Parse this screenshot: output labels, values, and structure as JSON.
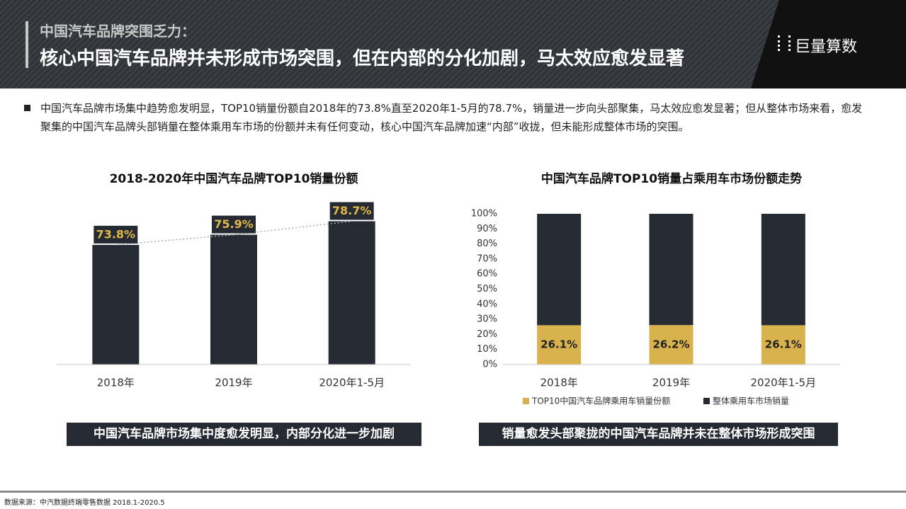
{
  "header": {
    "subtitle": "中国汽车品牌突围乏力：",
    "title": "核心中国汽车品牌并未形成市场突围，但在内部的分化加剧，马太效应愈发显著",
    "logo": "巨量算数"
  },
  "bullet": "中国汽车品牌市场集中趋势愈发明显，TOP10销量份额自2018年的73.8%直至2020年1-5月的78.7%，销量进一步向头部聚集，马太效应愈发显著；但从整体市场来看，愈发聚集的中国汽车品牌头部销量在整体乘用车市场的份额并未有任何变动，核心中国汽车品牌加速“内部”收拢，但未能形成整体市场的突围。",
  "captions": [
    "中国汽车品牌市场集中度愈发明显，内部分化进一步加剧",
    "销量愈发头部聚拢的中国汽车品牌并未在整体市场形成突围"
  ],
  "source": "数据来源：中汽数据终端零售数据 2018.1-2020.5",
  "chart_data": [
    {
      "type": "bar",
      "title": "2018-2020年中国汽车品牌TOP10销量份额",
      "categories": [
        "2018年",
        "2019年",
        "2020年1-5月"
      ],
      "values": [
        73.8,
        75.9,
        78.7
      ],
      "value_labels": [
        "73.8%",
        "75.9%",
        "78.7%"
      ],
      "color": "#252a33",
      "label_color": "#e0b84c",
      "ylim": [
        49,
        82
      ],
      "trend_line": true
    },
    {
      "type": "stacked_bar",
      "title": "中国汽车品牌TOP10销量占乘用车市场份额走势",
      "categories": [
        "2018年",
        "2019年",
        "2020年1-5月"
      ],
      "series": [
        {
          "name": "TOP10中国汽车品牌乘用车销量份额",
          "color": "#d8b24d",
          "values": [
            26.1,
            26.2,
            26.1
          ],
          "value_labels": [
            "26.1%",
            "26.2%",
            "26.1%"
          ]
        },
        {
          "name": "整体乘用车市场销量",
          "color": "#252a33",
          "values": [
            73.9,
            73.8,
            73.9
          ]
        }
      ],
      "ylim": [
        0,
        100
      ],
      "yticks": [
        {
          "value": 0,
          "label": "0%"
        },
        {
          "value": 10,
          "label": "10%"
        },
        {
          "value": 20,
          "label": "20%"
        },
        {
          "value": 30,
          "label": "30%"
        },
        {
          "value": 40,
          "label": "40%"
        },
        {
          "value": 50,
          "label": "50%"
        },
        {
          "value": 60,
          "label": "60%"
        },
        {
          "value": 70,
          "label": "70%"
        },
        {
          "value": 80,
          "label": "80%"
        },
        {
          "value": 90,
          "label": "90%"
        },
        {
          "value": 100,
          "label": "100%"
        }
      ],
      "legend": "bottom"
    }
  ]
}
